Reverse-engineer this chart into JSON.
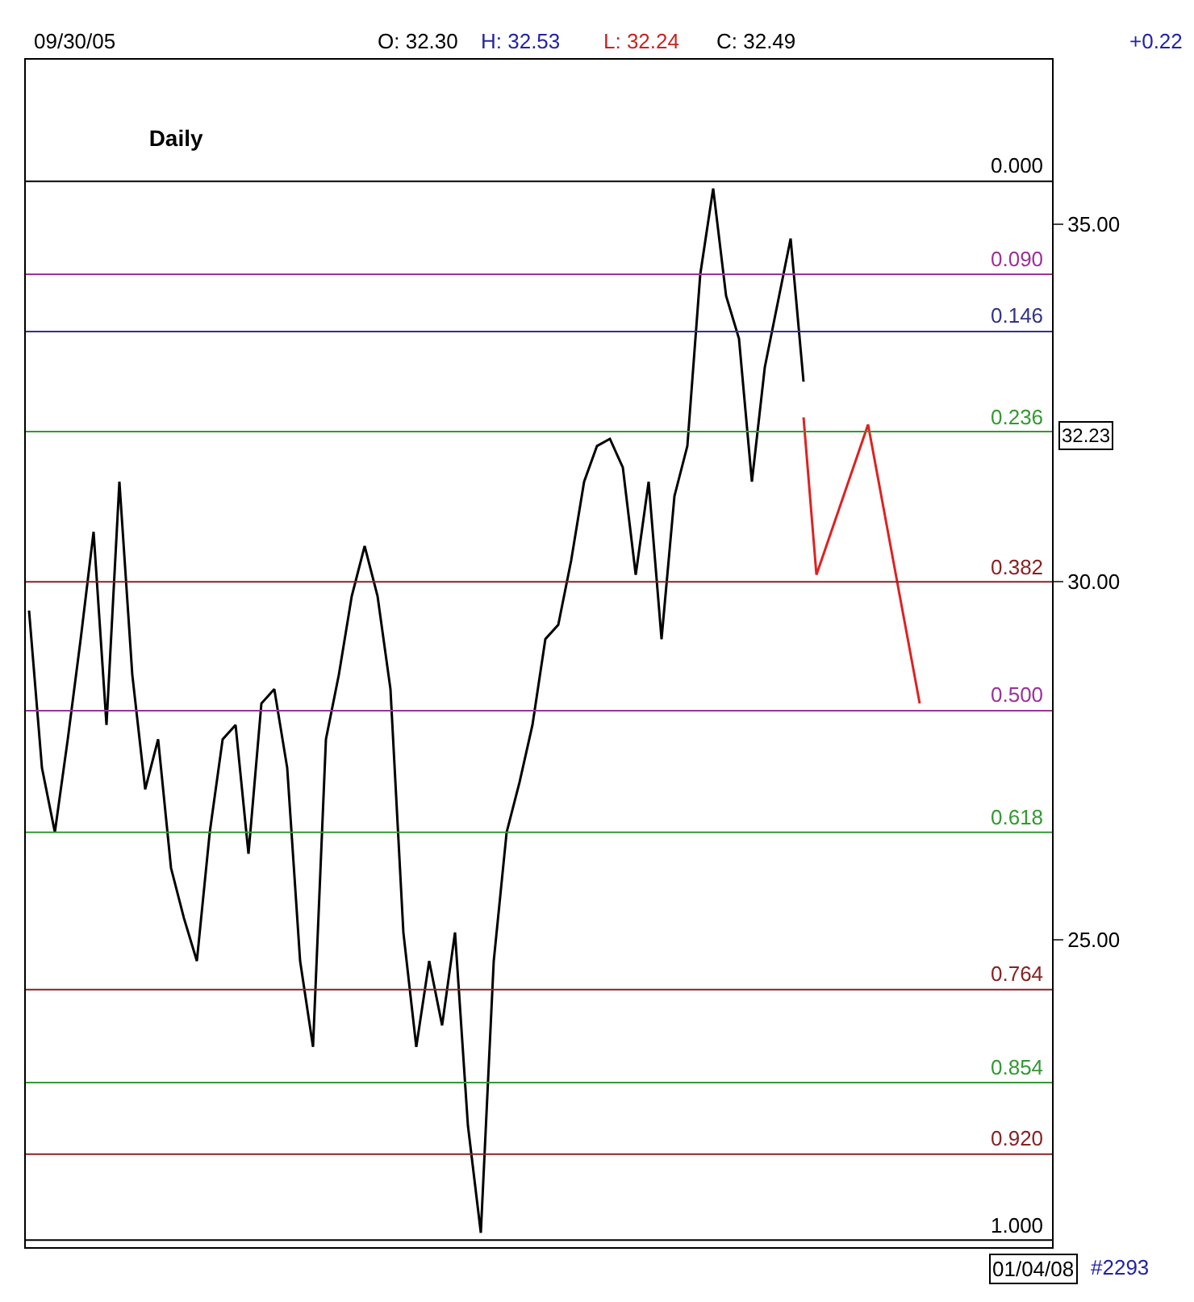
{
  "chart_data": {
    "type": "line",
    "title": "Daily",
    "categories": [
      null,
      null,
      null,
      null,
      null,
      null,
      null,
      null,
      null,
      null,
      null,
      null,
      null,
      null,
      null,
      null,
      null,
      null,
      null,
      null,
      null,
      null,
      null,
      null,
      null,
      null,
      null,
      null,
      null,
      null,
      null,
      null,
      null,
      null,
      null,
      null,
      null,
      null,
      null,
      null,
      null,
      null,
      null,
      null,
      null,
      null,
      null,
      null,
      null,
      null,
      null,
      null,
      null,
      null,
      null,
      null,
      null,
      null,
      null,
      null,
      null,
      null,
      null,
      null,
      null,
      null,
      null,
      null,
      null,
      null,
      null,
      null,
      null,
      null,
      null,
      null,
      null,
      null
    ],
    "series": [
      {
        "color": "#000000",
        "values": [
          29.6,
          27.4,
          26.5,
          27.8,
          29.2,
          30.7,
          28.0,
          31.4,
          28.7,
          27.1,
          27.8,
          26.0,
          25.3,
          24.7,
          26.5,
          27.8,
          28.0,
          26.2,
          28.3,
          28.5,
          27.4,
          24.7,
          23.5,
          27.8,
          28.7,
          29.8,
          30.5,
          29.8,
          28.5,
          25.1,
          23.5,
          24.7,
          23.8,
          25.1,
          22.4,
          20.9,
          24.7,
          26.5,
          27.2,
          28.0,
          29.2,
          29.4,
          30.3,
          31.4,
          31.9,
          32.0,
          31.6,
          30.1,
          31.4,
          29.2,
          31.2,
          31.9,
          34.3,
          35.5,
          34.0,
          33.4,
          31.4,
          33.0,
          33.9,
          34.8,
          32.8,
          null,
          null,
          null,
          null,
          null,
          null,
          null,
          null,
          null,
          null,
          null,
          null,
          null,
          null,
          null,
          null,
          null
        ]
      },
      {
        "color": "#e02020",
        "values": [
          null,
          null,
          null,
          null,
          null,
          null,
          null,
          null,
          null,
          null,
          null,
          null,
          null,
          null,
          null,
          null,
          null,
          null,
          null,
          null,
          null,
          null,
          null,
          null,
          null,
          null,
          null,
          null,
          null,
          null,
          null,
          null,
          null,
          null,
          null,
          null,
          null,
          null,
          null,
          null,
          null,
          null,
          null,
          null,
          null,
          null,
          null,
          null,
          null,
          null,
          null,
          null,
          null,
          null,
          null,
          null,
          null,
          null,
          null,
          null,
          32.3,
          30.1,
          null,
          null,
          null,
          32.2,
          null,
          null,
          null,
          28.3,
          null,
          null,
          null,
          null,
          null,
          null,
          null,
          null
        ]
      }
    ],
    "ylim": [
      20.7,
      37.3
    ],
    "yticks": [
      {
        "value": 25,
        "label": "25.00"
      },
      {
        "value": 30,
        "label": "30.00"
      },
      {
        "value": 35,
        "label": "35.00"
      }
    ],
    "ref_lines": [
      {
        "axis": "y",
        "value": 35.6,
        "color": "#000000"
      },
      {
        "axis": "y",
        "value": 34.3,
        "color": "#993399"
      },
      {
        "axis": "y",
        "value": 33.5,
        "color": "#333388"
      },
      {
        "axis": "y",
        "value": 32.1,
        "color": "#339933"
      },
      {
        "axis": "y",
        "value": 30.0,
        "color": "#882222"
      },
      {
        "axis": "y",
        "value": 28.2,
        "color": "#993399"
      },
      {
        "axis": "y",
        "value": 26.5,
        "color": "#339933"
      },
      {
        "axis": "y",
        "value": 24.3,
        "color": "#882222"
      },
      {
        "axis": "y",
        "value": 23.0,
        "color": "#339933"
      },
      {
        "axis": "y",
        "value": 22.0,
        "color": "#882222"
      },
      {
        "axis": "y",
        "value": 20.8,
        "color": "#000000"
      }
    ],
    "annotations": [
      "09/30/05",
      "O: 32.30",
      "H: 32.53",
      "L: 32.24",
      "C: 32.49",
      "+0.22",
      "32.23",
      "01/04/08",
      "#2293",
      {
        "text": "0.000",
        "y": 35.6
      },
      {
        "text": "0.090",
        "y": 34.3
      },
      {
        "text": "0.146",
        "y": 33.5
      },
      {
        "text": "0.236",
        "y": 32.1
      },
      {
        "text": "0.382",
        "y": 30.0
      },
      {
        "text": "0.500",
        "y": 28.2
      },
      {
        "text": "0.618",
        "y": 26.5
      },
      {
        "text": "0.764",
        "y": 24.3
      },
      {
        "text": "0.854",
        "y": 23.0
      },
      {
        "text": "0.920",
        "y": 22.0
      },
      {
        "text": "1.000",
        "y": 20.8
      }
    ],
    "marker": "none",
    "line_style": "solid"
  }
}
